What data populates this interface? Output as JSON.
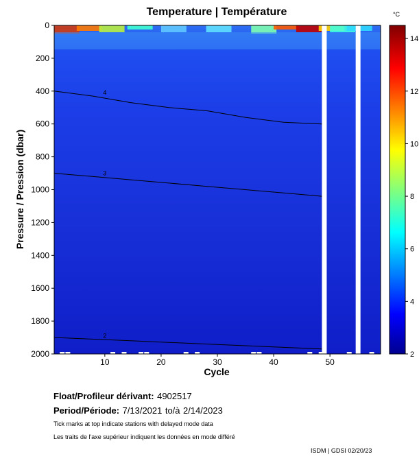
{
  "chart_data": {
    "type": "heatmap",
    "title": "Temperature | Température",
    "xlabel": "Cycle",
    "ylabel": "Pressure / Pression (dbar)",
    "xlim": [
      1,
      59
    ],
    "ylim": [
      2000,
      0
    ],
    "x_ticks": [
      10,
      20,
      30,
      40,
      50
    ],
    "y_ticks": [
      0,
      200,
      400,
      600,
      800,
      1000,
      1200,
      1400,
      1600,
      1800,
      2000
    ],
    "colorbar": {
      "unit": "°C",
      "range": [
        2,
        14.5
      ],
      "ticks": [
        2,
        4,
        6,
        8,
        10,
        12,
        14
      ],
      "colormap": "jet"
    },
    "missing_cycles": [
      49,
      55
    ],
    "contours": [
      {
        "level": "4",
        "pressures": [
          400,
          430,
          470,
          500,
          520,
          560,
          590,
          600
        ]
      },
      {
        "level": "3",
        "pressures": [
          900,
          920,
          940,
          960,
          980,
          1000,
          1020,
          1040
        ]
      },
      {
        "level": "2",
        "pressures": [
          1900,
          1910,
          1920,
          1930,
          1940,
          1950,
          1960,
          1970
        ]
      }
    ]
  },
  "info": {
    "float_label": "Float/Profileur dérivant:",
    "float_id": "4902517",
    "period_label": "Period/Période:",
    "start_date": "7/13/2021",
    "to_label": "to/à",
    "end_date": "2/14/2023",
    "note_en": "Tick marks at top indicate stations with delayed mode data",
    "note_fr": "Les traits de l'axe supérieur indiquent les données en mode différé",
    "credit": "ISDM | GDSI 02/20/23"
  }
}
